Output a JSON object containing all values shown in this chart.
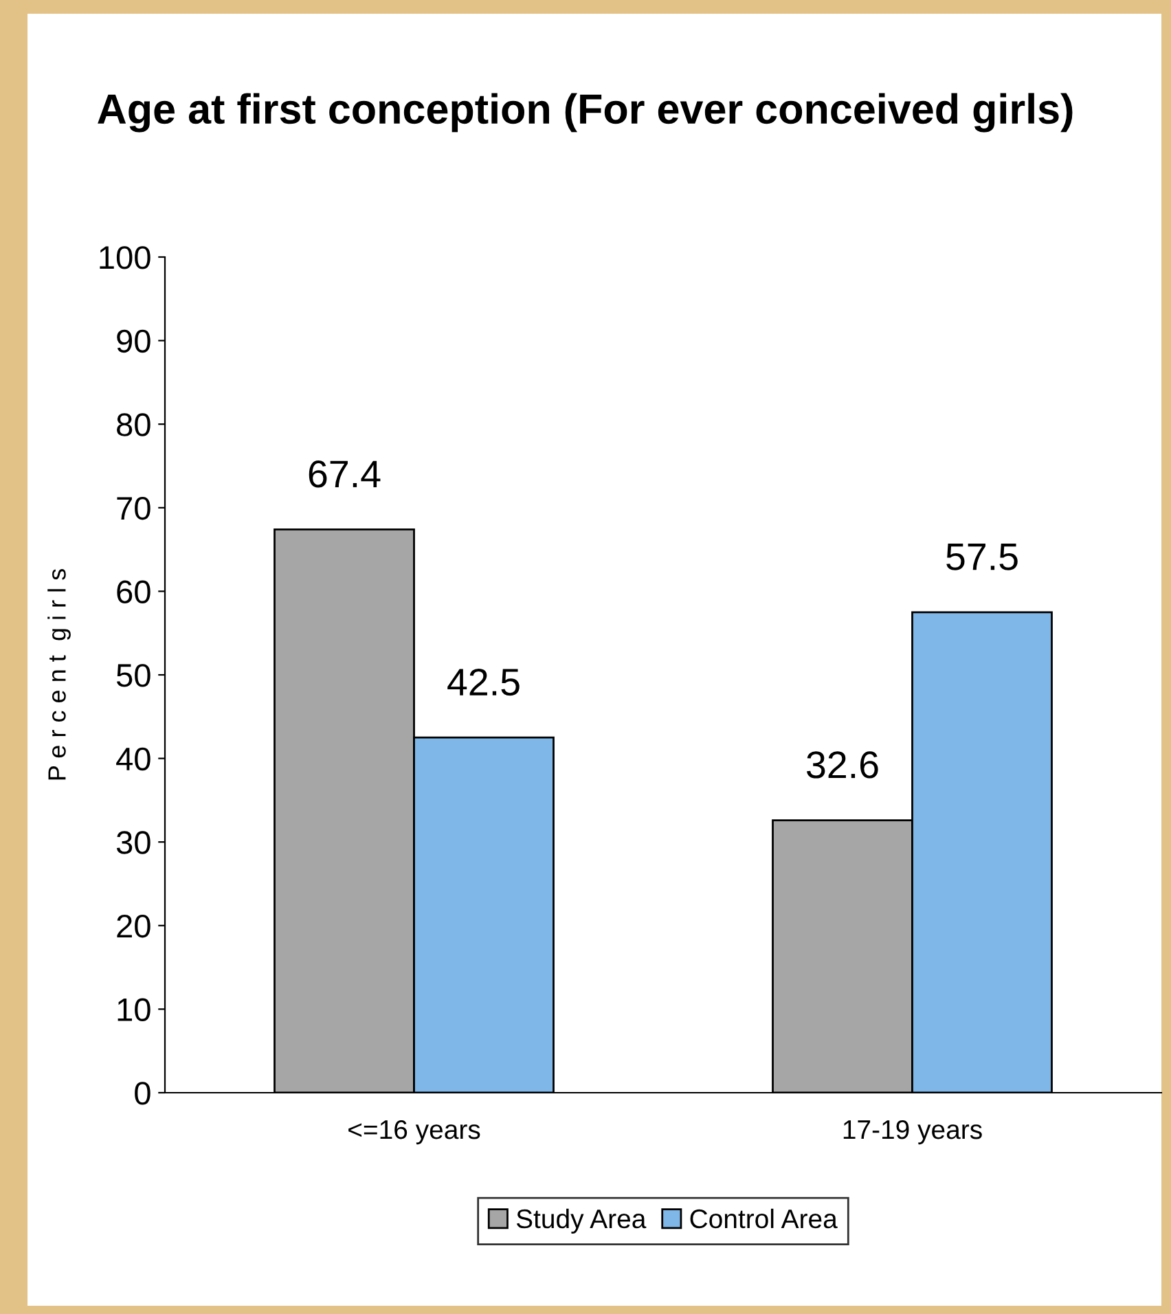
{
  "chart_data": {
    "type": "bar",
    "title": "Age at first conception (For ever conceived girls)",
    "ylabel": "P e r c e n t  g i r l s",
    "categories": [
      "<=16 years",
      "17-19 years"
    ],
    "series": [
      {
        "name": "Study Area",
        "color": "#a6a6a6",
        "values": [
          67.4,
          32.6
        ]
      },
      {
        "name": "Control Area",
        "color": "#7fb8e8",
        "values": [
          42.5,
          57.5
        ]
      }
    ],
    "ylim": [
      0,
      100
    ],
    "yticks": [
      0,
      10,
      20,
      30,
      40,
      50,
      60,
      70,
      80,
      90,
      100
    ],
    "data_labels": true,
    "grid": false,
    "legend": "bottom"
  }
}
